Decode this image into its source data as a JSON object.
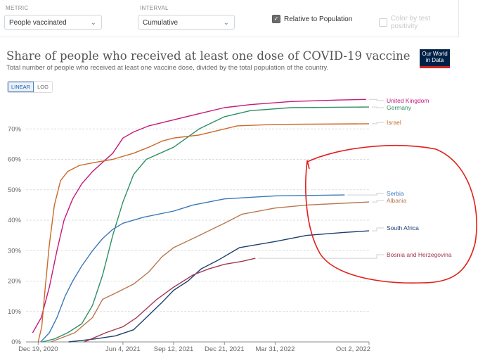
{
  "controls": {
    "metric_label": "METRIC",
    "metric_value": "People vaccinated",
    "interval_label": "INTERVAL",
    "interval_value": "Cumulative",
    "relative_label": "Relative to Population",
    "relative_checked": true,
    "color_label": "Color by test positivity",
    "color_checked": false
  },
  "header": {
    "title": "Share of people who received at least one dose of COVID-19 vaccine",
    "subtitle": "Total number of people who received at least one vaccine dose, divided by the total population of the country.",
    "logo_line1": "Our World",
    "logo_line2": "in Data"
  },
  "scale_toggle": {
    "linear": "LINEAR",
    "log": "LOG",
    "active": "linear"
  },
  "chart_data": {
    "type": "line",
    "title": "Share of people who received at least one dose of COVID-19 vaccine",
    "subtitle": "Total number of people who received at least one vaccine dose, divided by the total population of the country.",
    "x_ticks": [
      "Dec 19, 2020",
      "Jun 4, 2021",
      "Sep 12, 2021",
      "Dec 21, 2021",
      "Mar 31, 2022",
      "Oct 2, 2022"
    ],
    "x_tick_dates": [
      "2020-12-19",
      "2021-06-04",
      "2021-09-12",
      "2021-12-21",
      "2022-03-31",
      "2022-10-02"
    ],
    "xlim": [
      "2020-11-25",
      "2022-10-02"
    ],
    "ylim": [
      0,
      80
    ],
    "y_ticks": [
      "0%",
      "10%",
      "20%",
      "30%",
      "40%",
      "50%",
      "60%",
      "70%"
    ],
    "grid": true,
    "legend_placement": "right",
    "series": [
      {
        "name": "United Kingdom",
        "color": "#c5197d",
        "values": [
          [
            "2020-12-08",
            3
          ],
          [
            "2020-12-25",
            8
          ],
          [
            "2021-01-10",
            18
          ],
          [
            "2021-01-25",
            30
          ],
          [
            "2021-02-08",
            40
          ],
          [
            "2021-02-25",
            47
          ],
          [
            "2021-03-15",
            52
          ],
          [
            "2021-04-05",
            56
          ],
          [
            "2021-04-25",
            59
          ],
          [
            "2021-05-15",
            62
          ],
          [
            "2021-06-04",
            67
          ],
          [
            "2021-06-25",
            69
          ],
          [
            "2021-07-25",
            71
          ],
          [
            "2021-09-12",
            73
          ],
          [
            "2021-11-01",
            75
          ],
          [
            "2021-12-21",
            77
          ],
          [
            "2022-02-10",
            78
          ],
          [
            "2022-05-01",
            79
          ],
          [
            "2022-08-01",
            79.5
          ],
          [
            "2022-09-26",
            79.7
          ]
        ]
      },
      {
        "name": "Germany",
        "color": "#2f8f65",
        "values": [
          [
            "2020-12-27",
            0
          ],
          [
            "2021-01-20",
            1
          ],
          [
            "2021-02-15",
            3
          ],
          [
            "2021-03-15",
            6
          ],
          [
            "2021-04-05",
            12
          ],
          [
            "2021-04-25",
            22
          ],
          [
            "2021-05-15",
            35
          ],
          [
            "2021-06-04",
            46
          ],
          [
            "2021-06-25",
            55
          ],
          [
            "2021-07-20",
            60
          ],
          [
            "2021-09-12",
            64
          ],
          [
            "2021-11-01",
            70
          ],
          [
            "2021-12-21",
            74
          ],
          [
            "2022-02-10",
            76
          ],
          [
            "2022-05-01",
            77
          ],
          [
            "2022-10-02",
            77.2
          ]
        ]
      },
      {
        "name": "Israel",
        "color": "#c96a2b",
        "values": [
          [
            "2020-12-19",
            0
          ],
          [
            "2020-12-26",
            5
          ],
          [
            "2021-01-02",
            18
          ],
          [
            "2021-01-10",
            32
          ],
          [
            "2021-01-20",
            45
          ],
          [
            "2021-02-01",
            53
          ],
          [
            "2021-02-15",
            56
          ],
          [
            "2021-03-10",
            58
          ],
          [
            "2021-04-10",
            59
          ],
          [
            "2021-05-15",
            60
          ],
          [
            "2021-06-25",
            62
          ],
          [
            "2021-07-25",
            64
          ],
          [
            "2021-08-20",
            66
          ],
          [
            "2021-09-12",
            67
          ],
          [
            "2021-11-01",
            68
          ],
          [
            "2021-12-21",
            70
          ],
          [
            "2022-01-15",
            71
          ],
          [
            "2022-03-31",
            71.5
          ],
          [
            "2022-10-02",
            71.7
          ]
        ]
      },
      {
        "name": "Serbia",
        "color": "#3b78b9",
        "values": [
          [
            "2020-12-24",
            0
          ],
          [
            "2021-01-10",
            3
          ],
          [
            "2021-01-25",
            8
          ],
          [
            "2021-02-10",
            15
          ],
          [
            "2021-02-25",
            20
          ],
          [
            "2021-03-15",
            25
          ],
          [
            "2021-04-05",
            30
          ],
          [
            "2021-04-25",
            34
          ],
          [
            "2021-05-15",
            37
          ],
          [
            "2021-06-04",
            39
          ],
          [
            "2021-07-15",
            41
          ],
          [
            "2021-09-12",
            43
          ],
          [
            "2021-10-20",
            45
          ],
          [
            "2021-12-21",
            47
          ],
          [
            "2022-03-31",
            48
          ],
          [
            "2022-08-15",
            48.3
          ]
        ]
      },
      {
        "name": "Albania",
        "color": "#b9774e",
        "values": [
          [
            "2021-01-13",
            0
          ],
          [
            "2021-03-01",
            3
          ],
          [
            "2021-04-05",
            8
          ],
          [
            "2021-04-25",
            14
          ],
          [
            "2021-05-20",
            16
          ],
          [
            "2021-06-25",
            19
          ],
          [
            "2021-07-25",
            23
          ],
          [
            "2021-08-20",
            28
          ],
          [
            "2021-09-12",
            31
          ],
          [
            "2021-10-20",
            34
          ],
          [
            "2021-12-21",
            39
          ],
          [
            "2022-01-25",
            42
          ],
          [
            "2022-03-31",
            44
          ],
          [
            "2022-06-01",
            45
          ],
          [
            "2022-10-02",
            46
          ]
        ]
      },
      {
        "name": "South Africa",
        "color": "#1c3f6e",
        "values": [
          [
            "2021-02-17",
            0
          ],
          [
            "2021-04-10",
            1
          ],
          [
            "2021-05-20",
            2
          ],
          [
            "2021-06-25",
            4
          ],
          [
            "2021-07-20",
            8
          ],
          [
            "2021-08-20",
            13
          ],
          [
            "2021-09-12",
            17
          ],
          [
            "2021-10-10",
            20
          ],
          [
            "2021-11-05",
            24
          ],
          [
            "2021-12-10",
            27
          ],
          [
            "2022-01-20",
            31
          ],
          [
            "2022-03-31",
            33
          ],
          [
            "2022-06-01",
            35
          ],
          [
            "2022-08-15",
            36
          ],
          [
            "2022-10-02",
            36.5
          ]
        ]
      },
      {
        "name": "Bosnia and Herzegovina",
        "color": "#a2384f",
        "values": [
          [
            "2021-03-20",
            0
          ],
          [
            "2021-05-01",
            3
          ],
          [
            "2021-06-04",
            5
          ],
          [
            "2021-07-01",
            8
          ],
          [
            "2021-08-10",
            14
          ],
          [
            "2021-09-12",
            18
          ],
          [
            "2021-10-20",
            22
          ],
          [
            "2021-11-20",
            24
          ],
          [
            "2021-12-21",
            25.5
          ],
          [
            "2022-01-25",
            26.5
          ],
          [
            "2022-02-20",
            27.5
          ]
        ]
      }
    ]
  },
  "legend_entries": [
    {
      "label": "United Kingdom",
      "color": "#c5197d"
    },
    {
      "label": "Germany",
      "color": "#2f8f65"
    },
    {
      "label": "Israel",
      "color": "#c96a2b"
    },
    {
      "label": "Serbia",
      "color": "#3b78b9"
    },
    {
      "label": "Albania",
      "color": "#b9774e"
    },
    {
      "label": "South Africa",
      "color": "#1c3f6e"
    },
    {
      "label": "Bosnia and Herzegovina",
      "color": "#a2384f"
    }
  ],
  "annotation": {
    "shape": "hand-drawn circle",
    "color": "#e0201b"
  }
}
